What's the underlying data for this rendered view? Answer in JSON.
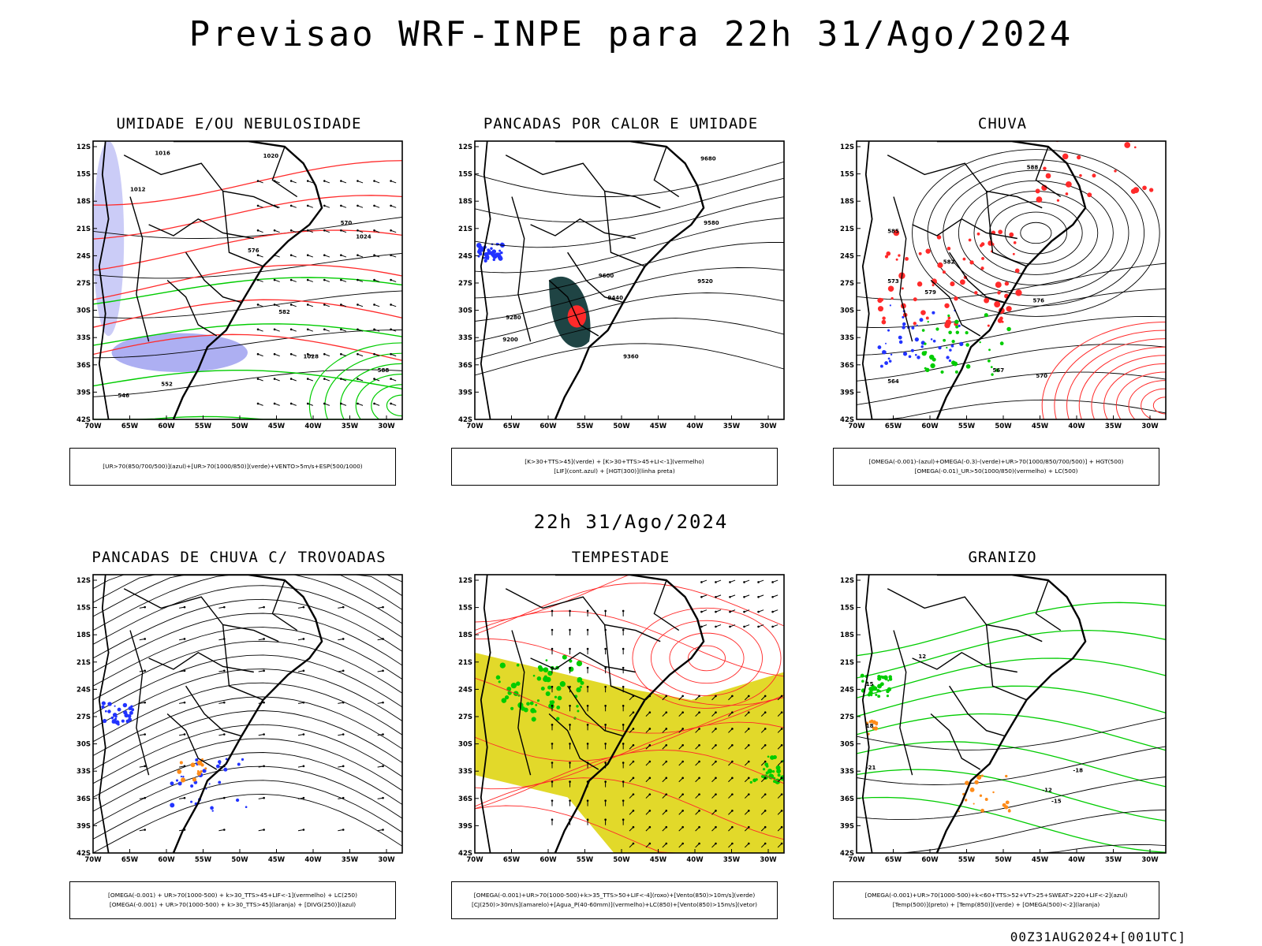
{
  "header": {
    "title": "Previsao WRF-INPE  para 22h 31/Ago/2024",
    "mid_title": "22h 31/Ago/2024",
    "footer": "00Z31AUG2024+[001UTC]"
  },
  "axes": {
    "lat_ticks": [
      "12S",
      "15S",
      "18S",
      "21S",
      "24S",
      "27S",
      "30S",
      "33S",
      "36S",
      "39S",
      "42S"
    ],
    "lon_ticks": [
      "70W",
      "65W",
      "60W",
      "55W",
      "50W",
      "45W",
      "40W",
      "35W",
      "30W"
    ]
  },
  "colors": {
    "blue_area": "#6a6ee8",
    "green_line": "#00cc00",
    "red_line": "#ff2a2a",
    "dark_teal": "#1f4444",
    "yellow_area": "#e2d92a",
    "orange": "#ff8c1a",
    "blue_dots": "#2233ff"
  },
  "panels": [
    {
      "id": "umidade",
      "title": "UMIDADE E/OU NEBULOSIDADE",
      "legend": [
        "[UR>70(850/700/500)](azul)+[UR>70(1000/850)](verde)+VENTO>5m/s+ESP(500/1000)"
      ],
      "contour_labels": [
        "1012",
        "1016",
        "1020",
        "1024",
        "1028",
        "570",
        "576",
        "582",
        "588",
        "546",
        "552"
      ]
    },
    {
      "id": "pancadas-calor",
      "title": "PANCADAS POR CALOR E UMIDADE",
      "legend": [
        "[K>30+TTS>45](verde) + [K>30+TTS>45+LI<-1](vermelho)",
        "[LIF](cont.azul) + [HGT(300)](linha preta)"
      ],
      "contour_labels": [
        "9680",
        "9600",
        "9580",
        "9520",
        "9440",
        "9360",
        "9280",
        "9200"
      ]
    },
    {
      "id": "chuva",
      "title": "CHUVA",
      "legend": [
        "[OMEGA(-0.001)-(azul)+OMEGA(-0.3)-(verde)+UR>70(1000/850/700/500)] + HGT(500)",
        "[OMEGA(-0.01)_UR>50(1000/850)(vermelho) + LC(500)"
      ],
      "contour_labels": [
        "588",
        "585",
        "582",
        "579",
        "576",
        "573",
        "570",
        "567",
        "564"
      ]
    },
    {
      "id": "pancadas-trovoadas",
      "title": "PANCADAS DE CHUVA C/ TROVOADAS",
      "legend": [
        "[OMEGA(-0.001) + UR>70(1000-500) + k>30_TTS>45+LIF<-1](vermelho) + LC(250)",
        "[OMEGA(-0.001) + UR>70(1000-500) + k>30_TTS>45](laranja) + [DIVG(250)](azul)"
      ],
      "contour_labels": []
    },
    {
      "id": "tempestade",
      "title": "TEMPESTADE",
      "legend": [
        "[OMEGA(-0.001)+UR>70(1000-500)+k>35_TTS>50+LIF<-4](roxo)+[Vento(850)>10m/s](verde)",
        "[CJ(250)>30m/s](amarelo)+[Agua_P(40-60mm)](vermelho)+LC(850)+[Vento(850)>15m/s](vetor)"
      ],
      "contour_labels": []
    },
    {
      "id": "granizo",
      "title": "GRANIZO",
      "legend": [
        "[OMEGA(-0.001)+UR>70(1000-500)+k<60+TTS>52+VT>25+SWEAT>220+LIF<-2](azul)",
        "[Temp(500)](preto) + [Temp(850)](verde) + [OMEGA(500)<-2](laranja)"
      ],
      "contour_labels": [
        "-12",
        "-15",
        "-18",
        "-21",
        "18",
        "15",
        "12"
      ]
    }
  ]
}
